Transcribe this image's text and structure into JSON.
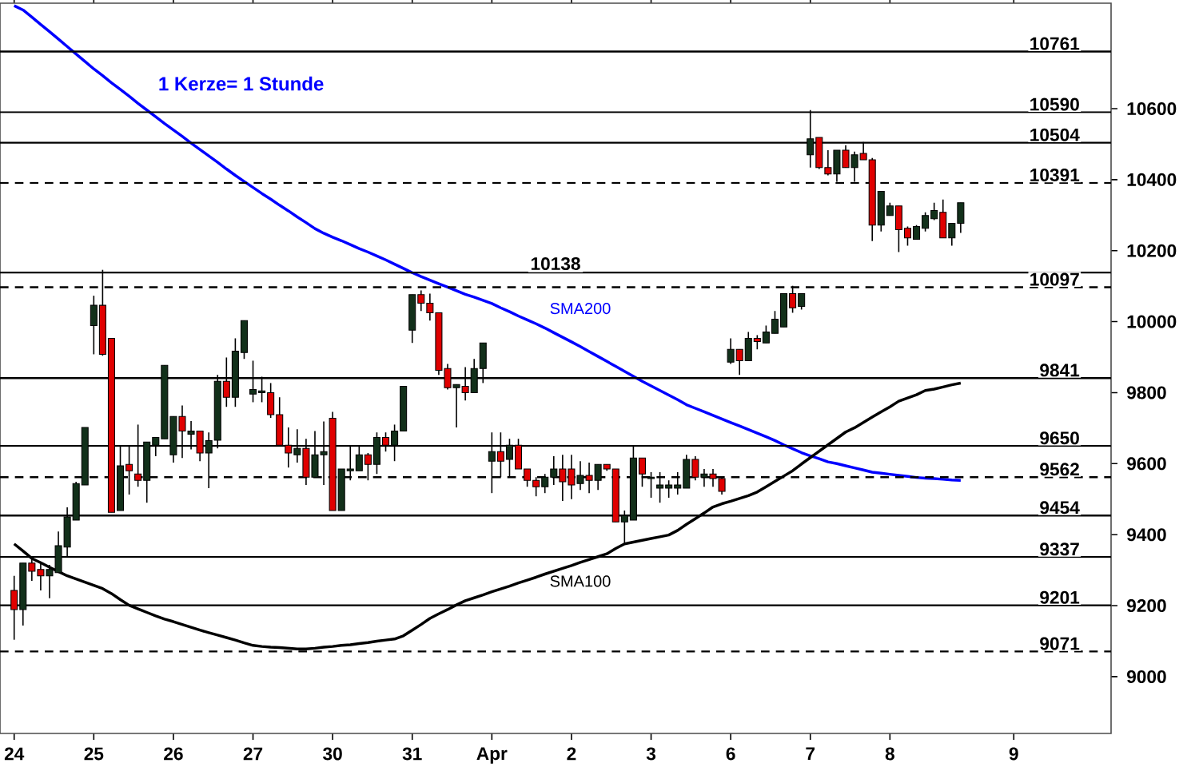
{
  "chart_data": {
    "type": "candlestick",
    "annotations": [
      "1 Kerze= 1 Stunde"
    ],
    "categories": [
      "24",
      null,
      null,
      null,
      null,
      null,
      null,
      null,
      null,
      "25",
      null,
      null,
      null,
      null,
      null,
      null,
      null,
      null,
      "26",
      null,
      null,
      null,
      null,
      null,
      null,
      null,
      null,
      "27",
      null,
      null,
      null,
      null,
      null,
      null,
      null,
      null,
      "30",
      null,
      null,
      null,
      null,
      null,
      null,
      null,
      null,
      "31",
      null,
      null,
      null,
      null,
      null,
      null,
      null,
      null,
      "Apr",
      null,
      null,
      null,
      null,
      null,
      null,
      null,
      null,
      "2",
      null,
      null,
      null,
      null,
      null,
      null,
      null,
      null,
      "3",
      null,
      null,
      null,
      null,
      null,
      null,
      null,
      null,
      "6",
      null,
      null,
      null,
      null,
      null,
      null,
      null,
      null,
      "7",
      null,
      null,
      null,
      null,
      null,
      null,
      null,
      null,
      "8",
      null,
      null,
      null,
      null,
      null,
      null,
      null,
      null,
      null,
      null,
      null,
      null,
      null,
      "9"
    ],
    "ohlc": [
      [
        9243,
        9284,
        9104,
        9189
      ],
      [
        9189,
        9320,
        9144,
        9320
      ],
      [
        9320,
        9333,
        9270,
        9297
      ],
      [
        9302,
        9324,
        9243,
        9284
      ],
      [
        9284,
        9315,
        9221,
        9302
      ],
      [
        9293,
        9409,
        9293,
        9369
      ],
      [
        9365,
        9477,
        9338,
        9450
      ],
      [
        9441,
        9549,
        9441,
        9544
      ],
      [
        9540,
        9702,
        9540,
        9702
      ],
      [
        9989,
        10073,
        9908,
        10046
      ],
      [
        10046,
        10146,
        9904,
        9908
      ],
      [
        9953,
        9953,
        9463,
        9463
      ],
      [
        9468,
        9652,
        9468,
        9594
      ],
      [
        9598,
        9648,
        9513,
        9580
      ],
      [
        9571,
        9710,
        9535,
        9553
      ],
      [
        9553,
        9661,
        9490,
        9661
      ],
      [
        9652,
        9674,
        9621,
        9674
      ],
      [
        9670,
        9877,
        9670,
        9877
      ],
      [
        9625,
        9733,
        9603,
        9733
      ],
      [
        9733,
        9764,
        9616,
        9692
      ],
      [
        9683,
        9720,
        9640,
        9692
      ],
      [
        9692,
        9692,
        9607,
        9630
      ],
      [
        9630,
        9688,
        9531,
        9665
      ],
      [
        9666,
        9850,
        9643,
        9832
      ],
      [
        9832,
        9899,
        9760,
        9787
      ],
      [
        9787,
        9953,
        9760,
        9917
      ],
      [
        9913,
        10003,
        9895,
        10003
      ],
      [
        9796,
        9890,
        9773,
        9809
      ],
      [
        9800,
        9845,
        9773,
        9805
      ],
      [
        9800,
        9827,
        9729,
        9738
      ],
      [
        9738,
        9787,
        9652,
        9652
      ],
      [
        9652,
        9702,
        9589,
        9630
      ],
      [
        9625,
        9697,
        9603,
        9643
      ],
      [
        9643,
        9670,
        9540,
        9562
      ],
      [
        9562,
        9692,
        9562,
        9625
      ],
      [
        9625,
        9719,
        9540,
        9634
      ],
      [
        9728,
        9746,
        9468,
        9468
      ],
      [
        9468,
        9585,
        9468,
        9585
      ],
      [
        9580,
        9648,
        9553,
        9585
      ],
      [
        9580,
        9652,
        9580,
        9625
      ],
      [
        9625,
        9630,
        9553,
        9598
      ],
      [
        9598,
        9688,
        9571,
        9674
      ],
      [
        9674,
        9688,
        9634,
        9652
      ],
      [
        9652,
        9710,
        9607,
        9692
      ],
      [
        9692,
        9818,
        9692,
        9818
      ],
      [
        9976,
        10076,
        9940,
        10076
      ],
      [
        10076,
        10088,
        10030,
        10052
      ],
      [
        10052,
        10079,
        10003,
        10025
      ],
      [
        10025,
        10025,
        9850,
        9863
      ],
      [
        9868,
        9881,
        9809,
        9814
      ],
      [
        9814,
        9823,
        9702,
        9823
      ],
      [
        9818,
        9872,
        9778,
        9800
      ],
      [
        9800,
        9895,
        9800,
        9868
      ],
      [
        9868,
        9940,
        9827,
        9940
      ],
      [
        9607,
        9688,
        9517,
        9634
      ],
      [
        9634,
        9688,
        9562,
        9607
      ],
      [
        9612,
        9670,
        9562,
        9652
      ],
      [
        9652,
        9670,
        9585,
        9585
      ],
      [
        9585,
        9585,
        9535,
        9553
      ],
      [
        9553,
        9562,
        9508,
        9535
      ],
      [
        9535,
        9571,
        9517,
        9562
      ],
      [
        9562,
        9621,
        9540,
        9585
      ],
      [
        9585,
        9625,
        9495,
        9549
      ],
      [
        9585,
        9625,
        9500,
        9540
      ],
      [
        9544,
        9607,
        9526,
        9567
      ],
      [
        9567,
        9603,
        9517,
        9553
      ],
      [
        9553,
        9598,
        9526,
        9598
      ],
      [
        9598,
        9598,
        9580,
        9585
      ],
      [
        9585,
        9585,
        9436,
        9436
      ],
      [
        9436,
        9468,
        9373,
        9454
      ],
      [
        9441,
        9652,
        9441,
        9616
      ],
      [
        9616,
        9616,
        9535,
        9571
      ],
      [
        9558,
        9576,
        9504,
        9562
      ],
      [
        9531,
        9576,
        9490,
        9540
      ],
      [
        9531,
        9553,
        9504,
        9540
      ],
      [
        9531,
        9576,
        9513,
        9540
      ],
      [
        9531,
        9625,
        9531,
        9612
      ],
      [
        9612,
        9621,
        9553,
        9562
      ],
      [
        9562,
        9585,
        9535,
        9571
      ],
      [
        9571,
        9585,
        9535,
        9558
      ],
      [
        9558,
        9562,
        9513,
        9522
      ],
      [
        9886,
        9953,
        9881,
        9922
      ],
      [
        9922,
        9922,
        9850,
        9890
      ],
      [
        9890,
        9971,
        9890,
        9953
      ],
      [
        9953,
        9962,
        9922,
        9944
      ],
      [
        9940,
        9989,
        9940,
        9971
      ],
      [
        9967,
        10030,
        9967,
        10007
      ],
      [
        9985,
        10079,
        9985,
        10079
      ],
      [
        10079,
        10101,
        10025,
        10039
      ],
      [
        10043,
        10079,
        10034,
        10079
      ],
      [
        10470,
        10596,
        10434,
        10515
      ],
      [
        10519,
        10519,
        10430,
        10434
      ],
      [
        10434,
        10483,
        10412,
        10416
      ],
      [
        10416,
        10483,
        10394,
        10483
      ],
      [
        10483,
        10497,
        10434,
        10434
      ],
      [
        10434,
        10479,
        10394,
        10470
      ],
      [
        10474,
        10506,
        10456,
        10456
      ],
      [
        10456,
        10461,
        10227,
        10272
      ],
      [
        10272,
        10367,
        10254,
        10367
      ],
      [
        10299,
        10335,
        10299,
        10326
      ],
      [
        10326,
        10326,
        10196,
        10259
      ],
      [
        10263,
        10268,
        10214,
        10236
      ],
      [
        10232,
        10272,
        10232,
        10268
      ],
      [
        10263,
        10308,
        10254,
        10299
      ],
      [
        10290,
        10335,
        10286,
        10313
      ],
      [
        10308,
        10344,
        10236,
        10236
      ],
      [
        10236,
        10277,
        10214,
        10277
      ],
      [
        10277,
        10335,
        10250,
        10335
      ],
      null,
      null,
      null,
      null,
      null,
      null
    ],
    "ylim": [
      8840,
      10897
    ],
    "yticks": [
      9000,
      9200,
      9400,
      9600,
      9800,
      10000,
      10200,
      10400,
      10600
    ],
    "ref_lines": [
      {
        "axis": "y",
        "value": 10761,
        "label": "10761"
      },
      {
        "axis": "y",
        "value": 10590,
        "label": "10590"
      },
      {
        "axis": "y",
        "value": 10504,
        "label": "10504"
      },
      {
        "axis": "y",
        "value": 10391,
        "label": "10391",
        "line_style": "dashed"
      },
      {
        "axis": "y",
        "value": 10138,
        "label": "10138"
      },
      {
        "axis": "y",
        "value": 10097,
        "label": "10097",
        "line_style": "dashed"
      },
      {
        "axis": "y",
        "value": 9841,
        "label": "9841"
      },
      {
        "axis": "y",
        "value": 9650,
        "label": "9650"
      },
      {
        "axis": "y",
        "value": 9562,
        "label": "9562",
        "line_style": "dashed"
      },
      {
        "axis": "y",
        "value": 9454,
        "label": "9454"
      },
      {
        "axis": "y",
        "value": 9337,
        "label": "9337"
      },
      {
        "axis": "y",
        "value": 9201,
        "label": "9201"
      },
      {
        "axis": "y",
        "value": 9071,
        "label": "9071",
        "line_style": "dashed"
      }
    ],
    "series": [
      {
        "name": "SMA200",
        "type": "line",
        "color": "#0000ff",
        "values": [
          10890,
          10878,
          10858,
          10837,
          10817,
          10796,
          10775,
          10754,
          10733,
          10712,
          10693,
          10673,
          10654,
          10635,
          10615,
          10596,
          10577,
          10558,
          10540,
          10522,
          10503,
          10485,
          10467,
          10449,
          10430,
          10412,
          10395,
          10378,
          10361,
          10345,
          10328,
          10312,
          10295,
          10279,
          10262,
          10249,
          10238,
          10228,
          10217,
          10206,
          10196,
          10185,
          10174,
          10162,
          10150,
          10138,
          10127,
          10117,
          10107,
          10097,
          10087,
          10077,
          10069,
          10060,
          10051,
          10039,
          10028,
          10016,
          10005,
          9994,
          9982,
          9969,
          9956,
          9943,
          9930,
          9916,
          9902,
          9888,
          9874,
          9860,
          9846,
          9832,
          9819,
          9806,
          9793,
          9780,
          9766,
          9756,
          9746,
          9736,
          9726,
          9716,
          9706,
          9696,
          9686,
          9676,
          9665,
          9653,
          9642,
          9631,
          9622,
          9614,
          9605,
          9600,
          9594,
          9588,
          9582,
          9576,
          9573,
          9570,
          9567,
          9564,
          9561,
          9559,
          9558,
          9556,
          9554,
          9553,
          null,
          null,
          null,
          null,
          null,
          null
        ]
      },
      {
        "name": "SMA100",
        "type": "line",
        "color": "#000000",
        "values": [
          9374,
          9354,
          9333,
          9321,
          9308,
          9296,
          9284,
          9275,
          9266,
          9257,
          9248,
          9234,
          9217,
          9201,
          9191,
          9181,
          9171,
          9162,
          9155,
          9147,
          9139,
          9131,
          9124,
          9117,
          9110,
          9103,
          9095,
          9088,
          9085,
          9083,
          9082,
          9080,
          9078,
          9078,
          9080,
          9083,
          9085,
          9088,
          9090,
          9093,
          9096,
          9100,
          9103,
          9106,
          9115,
          9131,
          9147,
          9164,
          9177,
          9189,
          9202,
          9214,
          9222,
          9230,
          9239,
          9247,
          9255,
          9264,
          9272,
          9280,
          9289,
          9297,
          9305,
          9313,
          9322,
          9330,
          9338,
          9346,
          9361,
          9374,
          9379,
          9384,
          9389,
          9394,
          9399,
          9412,
          9429,
          9445,
          9461,
          9478,
          9487,
          9494,
          9502,
          9510,
          9520,
          9535,
          9550,
          9565,
          9580,
          9599,
          9617,
          9635,
          9653,
          9671,
          9689,
          9701,
          9716,
          9731,
          9746,
          9760,
          9776,
          9785,
          9794,
          9806,
          9810,
          9816,
          9822,
          9827,
          null,
          null,
          null,
          null,
          null,
          null
        ]
      }
    ]
  }
}
